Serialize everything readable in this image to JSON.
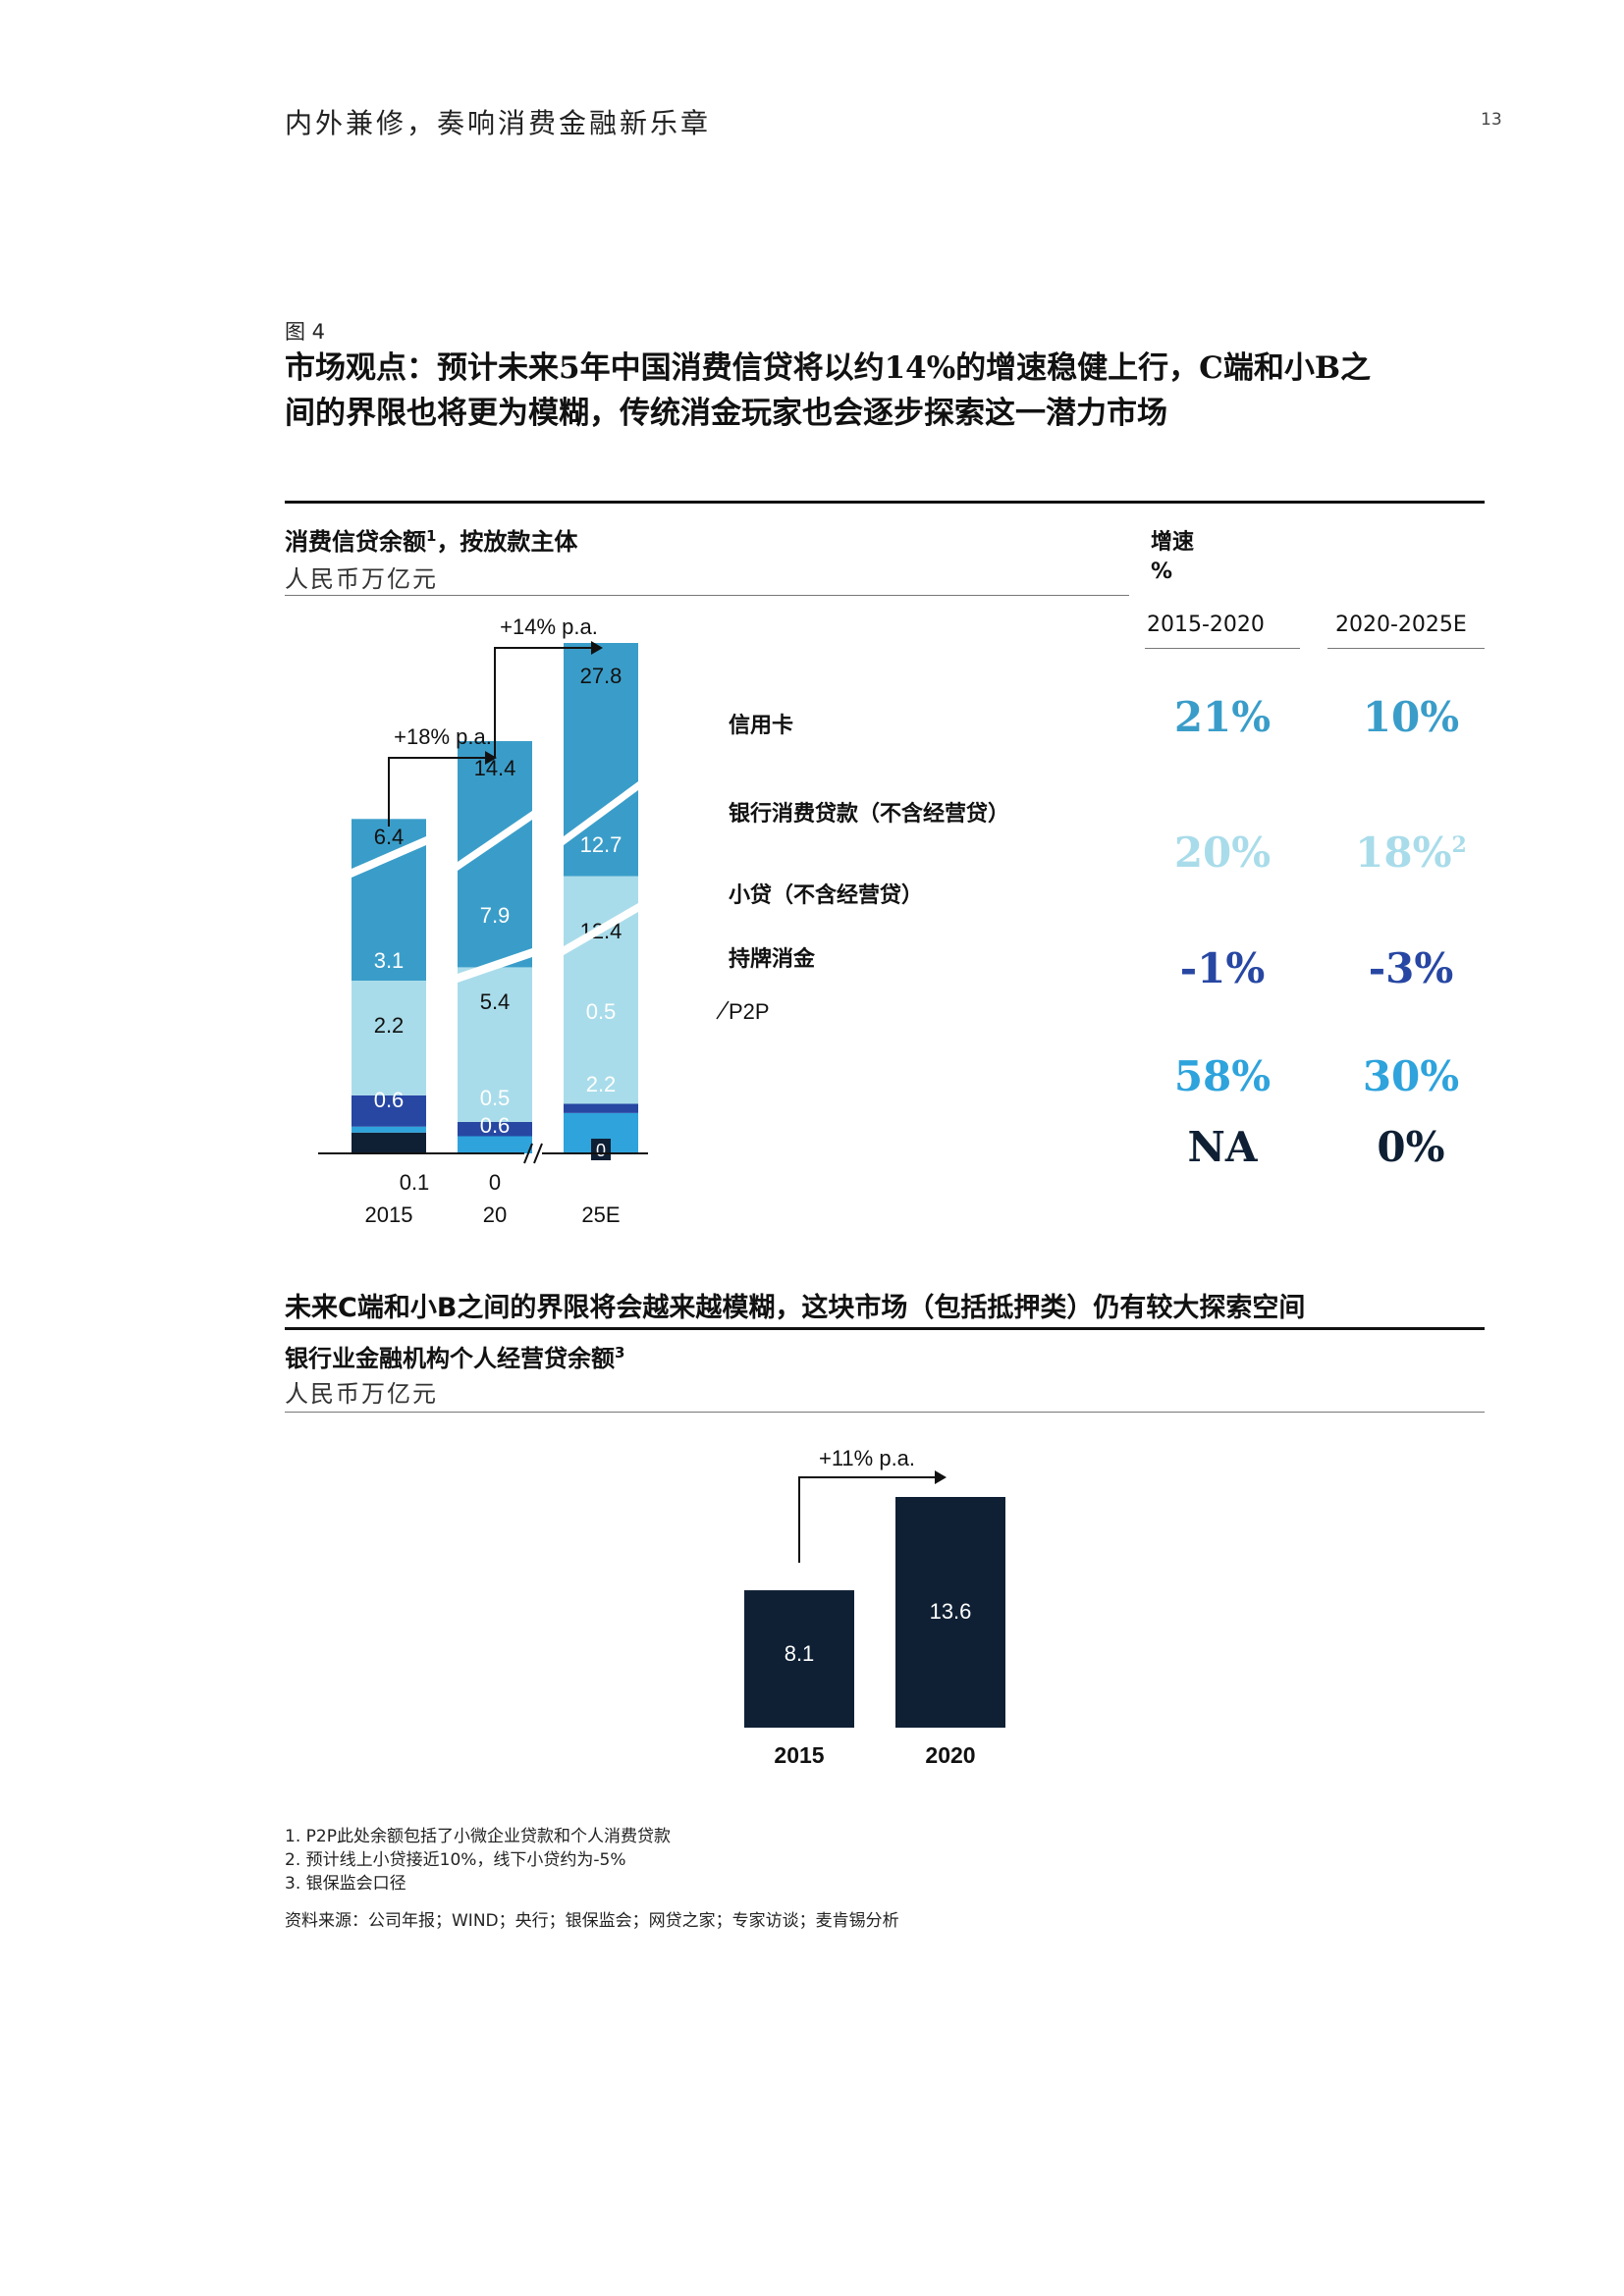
{
  "header": {
    "running_title": "内外兼修，奏响消费金融新乐章",
    "page_number": "13"
  },
  "figure": {
    "label": "图 4",
    "title_line1": "市场观点：预计未来5年中国消费信贷将以约14%的增速稳健上行，C端和小B之",
    "title_line2": "间的界限也将更为模糊，传统消金玩家也会逐步探索这一潜力市场"
  },
  "chart1": {
    "title": "消费信贷余额",
    "title_sup": "1",
    "title_suffix": "，按放款主体",
    "unit": "人民币万亿元"
  },
  "growth_table": {
    "header": "增速",
    "header_unit": "%",
    "col1": "2015-2020",
    "col2": "2020-2025E",
    "rows": [
      {
        "v1": "21%",
        "v2": "10%",
        "v2_sup": "",
        "color": "#3a9dc9"
      },
      {
        "v1": "20%",
        "v2": "18%",
        "v2_sup": "2",
        "color": "#a9dcea"
      },
      {
        "v1": "-1%",
        "v2": "-3%",
        "v2_sup": "",
        "color": "#2747a3"
      },
      {
        "v1": "58%",
        "v2": "30%",
        "v2_sup": "",
        "color": "#2ea3dc"
      },
      {
        "v1": "NA",
        "v2": "0%",
        "v2_sup": "",
        "color": "#0f2035"
      }
    ]
  },
  "section2": {
    "subhead": "未来C端和小B之间的界限将会越来越模糊，这块市场（包括抵押类）仍有较大探索空间",
    "title": "银行业金融机构个人经营贷余额",
    "title_sup": "3",
    "unit": "人民币万亿元"
  },
  "footnotes": [
    "1.   P2P此处余额包括了小微企业贷款和个人消费贷款",
    "2.   预计线上小贷接近10%，线下小贷约为-5%",
    "3.   银保监会口径"
  ],
  "source": "资料来源：公司年报；WIND；央行；银保监会；网贷之家；专家访谈；麦肯锡分析",
  "chart_data": [
    {
      "type": "bar",
      "stacked": true,
      "categories": [
        "2015",
        "20",
        "25E"
      ],
      "totals": [
        "6.4",
        "14.4",
        "27.8"
      ],
      "axis_break_before": "25E",
      "growth_arrows": [
        "+18% p.a.",
        "+14% p.a."
      ],
      "series": [
        {
          "name": "P2P",
          "color": "#0f2035",
          "values": [
            0.4,
            0,
            0
          ],
          "labels": [
            "0.4",
            "0",
            "0"
          ]
        },
        {
          "name": "持牌消金",
          "color": "#2ea3dc",
          "values": [
            0.1,
            0.6,
            2.2
          ],
          "labels": [
            "0.1",
            "0.6",
            "2.2"
          ]
        },
        {
          "name": "小贷（不含经营贷）",
          "color": "#2747a3",
          "values": [
            0.6,
            0.5,
            0.5
          ],
          "labels": [
            "0.6",
            "0.5",
            "0.5"
          ]
        },
        {
          "name": "银行消费贷款（不含经营贷）",
          "color": "#a9dcea",
          "values": [
            2.2,
            5.4,
            12.4
          ],
          "labels": [
            "2.2",
            "5.4",
            "12.4"
          ]
        },
        {
          "name": "信用卡",
          "color": "#3a9dc9",
          "values": [
            3.1,
            7.9,
            12.7
          ],
          "labels": [
            "3.1",
            "7.9",
            "12.7"
          ]
        }
      ]
    },
    {
      "type": "bar",
      "categories": [
        "2015",
        "2020"
      ],
      "values": [
        8.1,
        13.6
      ],
      "labels": [
        "8.1",
        "13.6"
      ],
      "color": "#0f2035",
      "growth_arrow": "+11% p.a."
    }
  ]
}
